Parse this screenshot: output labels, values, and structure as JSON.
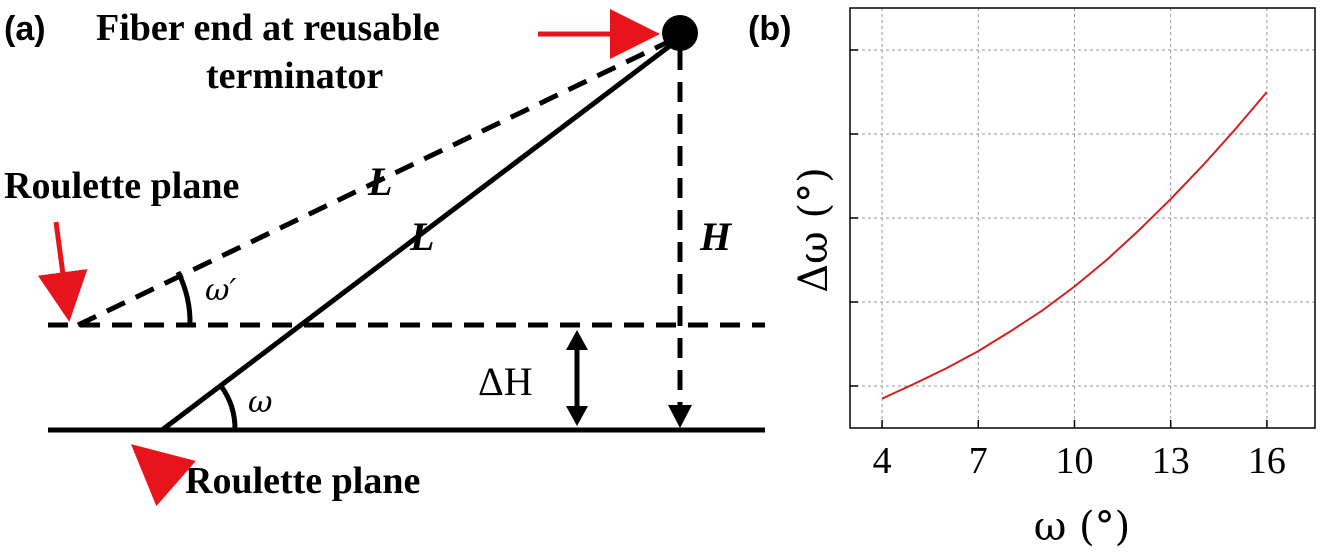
{
  "panel_a": {
    "panel_label": "(a)",
    "top_label_line1": "Fiber end at reusable",
    "top_label_line2": "terminator",
    "upper_plane_label": "Roulette plane",
    "lower_plane_label": "Roulette plane",
    "length_label_dashed": "L",
    "length_label_solid": "L",
    "height_label": "H",
    "delta_h_label": "ΔH",
    "angle_omega_prime": "ω′",
    "angle_omega": "ω",
    "arrow_color": "#e8141c"
  },
  "panel_b": {
    "panel_label": "(b)"
  },
  "chart_data": {
    "type": "line",
    "xlabel": "ω  (°)",
    "ylabel": "Δω (°)",
    "xlim": [
      3,
      17.5
    ],
    "ylim": [
      0,
      1
    ],
    "x_ticks": [
      4,
      7,
      10,
      13,
      16
    ],
    "x_tick_labels": [
      "4",
      "7",
      "10",
      "13",
      "16"
    ],
    "y_gridlines": [
      0.1,
      0.3,
      0.5,
      0.7,
      0.9
    ],
    "grid": true,
    "series": [
      {
        "color": "#d42020",
        "x": [
          4,
          5,
          6,
          7,
          8,
          9,
          10,
          11,
          12,
          13,
          14,
          15,
          16
        ],
        "values": [
          0.07,
          0.105,
          0.142,
          0.183,
          0.23,
          0.28,
          0.337,
          0.4,
          0.47,
          0.545,
          0.625,
          0.71,
          0.8
        ]
      }
    ]
  }
}
